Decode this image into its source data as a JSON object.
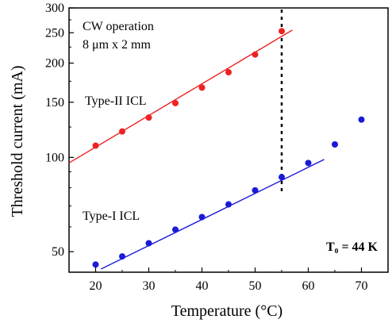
{
  "chart_data": {
    "type": "scatter",
    "xlabel": "Temperature (°C)",
    "ylabel": "Threshold current (mA)",
    "y_scale": "log",
    "xlim": [
      15,
      75
    ],
    "ylim": [
      43,
      300
    ],
    "x_ticks": [
      20,
      30,
      40,
      50,
      60,
      70
    ],
    "x_tick_labels": [
      "20",
      "30",
      "40",
      "50",
      "60",
      "70"
    ],
    "y_ticks": [
      50,
      100,
      150,
      200,
      250,
      300
    ],
    "y_tick_labels": [
      "50",
      "100",
      "150",
      "200",
      "250",
      "300"
    ],
    "annotations": {
      "operation_line1": "CW operation",
      "operation_line2": "8 μm x 2 mm",
      "t0": "T₀ = 44 K"
    },
    "vertical_marker": {
      "x": 55,
      "style": "dotted",
      "color": "#000000"
    },
    "series": [
      {
        "name": "Type-II ICL",
        "color": "#ee2222",
        "x": [
          20,
          25,
          30,
          35,
          40,
          45,
          50,
          55
        ],
        "y": [
          109,
          121,
          134,
          149,
          167,
          187,
          213,
          253
        ],
        "fit": {
          "x": [
            15,
            57
          ],
          "y": [
            96,
            255
          ]
        }
      },
      {
        "name": "Type-I ICL",
        "color": "#1a1ad6",
        "x": [
          20,
          25,
          30,
          35,
          40,
          45,
          50,
          55,
          60,
          65,
          70
        ],
        "y": [
          45.5,
          48.3,
          53.2,
          58.8,
          64.5,
          70.8,
          78.5,
          86.5,
          96,
          110,
          132
        ],
        "fit": {
          "x": [
            21,
            63
          ],
          "y": [
            44,
            98.5
          ]
        }
      }
    ]
  }
}
